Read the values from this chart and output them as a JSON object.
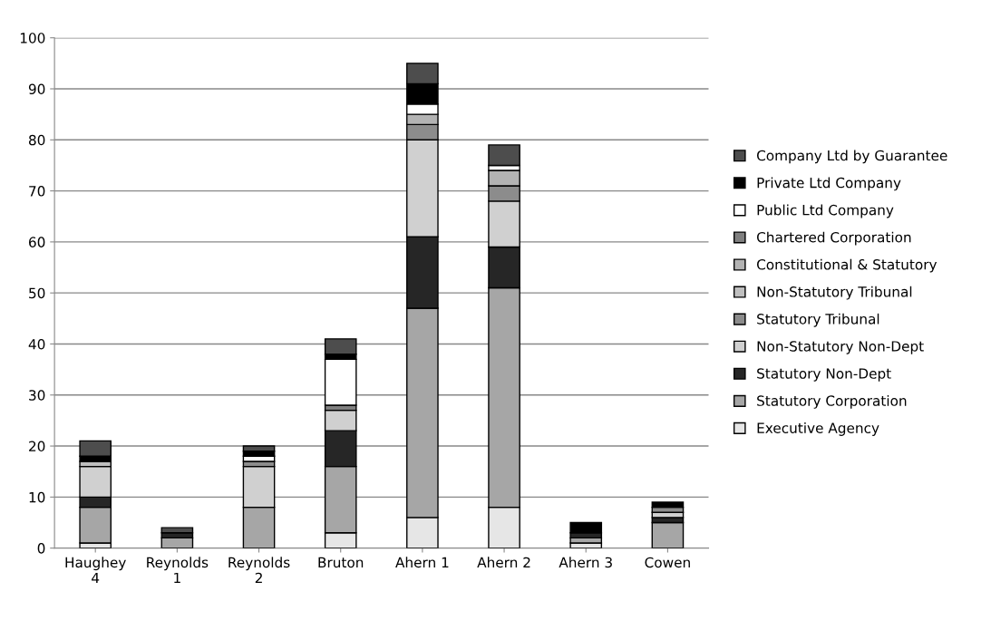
{
  "chart_data": {
    "type": "bar",
    "stacked": true,
    "categories": [
      "Haughey\n4",
      "Reynolds\n1",
      "Reynolds\n2",
      "Bruton",
      "Ahern 1",
      "Ahern 2",
      "Ahern 3",
      "Cowen"
    ],
    "series": [
      {
        "name": "Executive Agency",
        "color": "#e6e6e6",
        "values": [
          1,
          0,
          0,
          3,
          6,
          8,
          1,
          0
        ]
      },
      {
        "name": "Statutory Corporation",
        "color": "#a6a6a6",
        "values": [
          7,
          2,
          8,
          13,
          41,
          43,
          1,
          5
        ]
      },
      {
        "name": "Statutory Non-Dept",
        "color": "#262626",
        "values": [
          2,
          1,
          0,
          7,
          14,
          8,
          1,
          1
        ]
      },
      {
        "name": "Non-Statutory Non-Dept",
        "color": "#d0d0d0",
        "values": [
          6,
          0,
          8,
          4,
          19,
          9,
          0,
          1
        ]
      },
      {
        "name": "Statutory Tribunal",
        "color": "#8c8c8c",
        "values": [
          0,
          0,
          1,
          0,
          3,
          3,
          0,
          1
        ]
      },
      {
        "name": "Non-Statutory Tribunal",
        "color": "#bfbfbf",
        "values": [
          1,
          0,
          0,
          0,
          0,
          0,
          0,
          0
        ]
      },
      {
        "name": "Constitutional & Statutory",
        "color": "#b3b3b3",
        "values": [
          0,
          0,
          0,
          0,
          2,
          3,
          0,
          0
        ]
      },
      {
        "name": "Chartered Corporation",
        "color": "#7f7f7f",
        "values": [
          0,
          0,
          0,
          1,
          0,
          0,
          0,
          0
        ]
      },
      {
        "name": "Public Ltd Company",
        "color": "#ffffff",
        "values": [
          0,
          0,
          1,
          9,
          2,
          1,
          0,
          0
        ]
      },
      {
        "name": "Private Ltd Company",
        "color": "#000000",
        "values": [
          1,
          0,
          1,
          1,
          4,
          0,
          2,
          1
        ]
      },
      {
        "name": "Company Ltd by Guarantee",
        "color": "#4d4d4d",
        "values": [
          3,
          1,
          1,
          3,
          4,
          4,
          0,
          0
        ]
      }
    ],
    "ylim": [
      0,
      100
    ],
    "yticks": [
      0,
      10,
      20,
      30,
      40,
      50,
      60,
      70,
      80,
      90,
      100
    ],
    "grid": "y",
    "legend": "right"
  }
}
